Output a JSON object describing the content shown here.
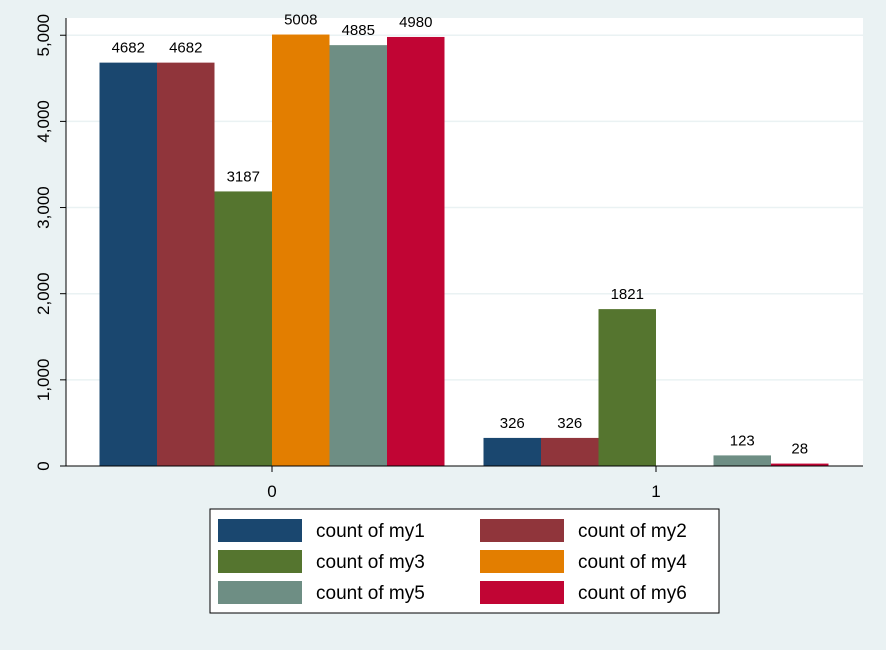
{
  "chart_data": {
    "type": "bar",
    "categories": [
      "0",
      "1"
    ],
    "ylim": [
      0,
      5200
    ],
    "yticks": [
      0,
      1000,
      2000,
      3000,
      4000,
      5000
    ],
    "ytick_labels": [
      "0",
      "1,000",
      "2,000",
      "3,000",
      "4,000",
      "5,000"
    ],
    "grid": true,
    "legend_position": "bottom",
    "series": [
      {
        "name": "count of my1",
        "color": "#1a476f",
        "values": [
          4682,
          326
        ],
        "labels": [
          "4682",
          "326"
        ]
      },
      {
        "name": "count of my2",
        "color": "#90353b",
        "values": [
          4682,
          326
        ],
        "labels": [
          "4682",
          "326"
        ]
      },
      {
        "name": "count of my3",
        "color": "#55752f",
        "values": [
          3187,
          1821
        ],
        "labels": [
          "3187",
          "1821"
        ]
      },
      {
        "name": "count of my4",
        "color": "#e37e00",
        "values": [
          5008,
          0
        ],
        "labels": [
          "5008",
          ""
        ]
      },
      {
        "name": "count of my5",
        "color": "#6e8e84",
        "values": [
          4885,
          123
        ],
        "labels": [
          "4885",
          "123"
        ]
      },
      {
        "name": "count of my6",
        "color": "#c10534",
        "values": [
          4980,
          28
        ],
        "labels": [
          "4980",
          "28"
        ]
      }
    ]
  }
}
